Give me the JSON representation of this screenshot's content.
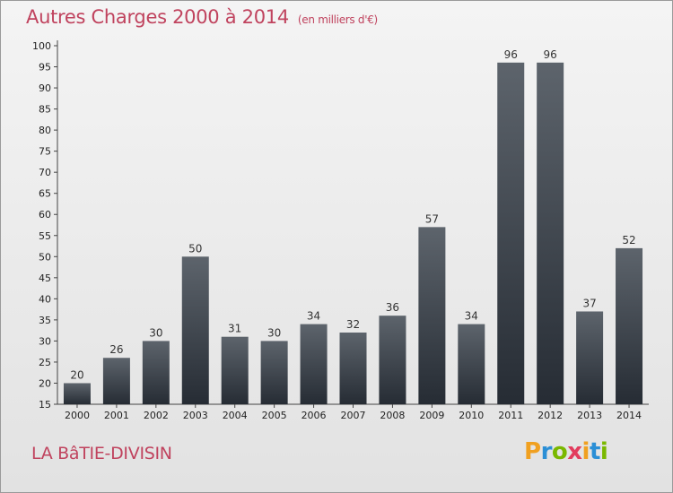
{
  "header": {
    "title": "Autres Charges 2000 à 2014",
    "unit": "(en milliers d'€)"
  },
  "footer": {
    "city": "LA BâTIE-DIVISIN",
    "logo": [
      "P",
      "r",
      "o",
      "x",
      "i",
      "t",
      "i"
    ]
  },
  "colors": {
    "title": "#c0435e",
    "bar_top": "#5d646c",
    "bar_bottom": "#262c34",
    "logo": [
      "#f0a020",
      "#2b8fd6",
      "#7ab800",
      "#e23c5d",
      "#f0a020",
      "#2b8fd6",
      "#7ab800"
    ]
  },
  "chart_data": {
    "type": "bar",
    "categories": [
      "2000",
      "2001",
      "2002",
      "2003",
      "2004",
      "2005",
      "2006",
      "2007",
      "2008",
      "2009",
      "2010",
      "2011",
      "2012",
      "2013",
      "2014"
    ],
    "values": [
      20,
      26,
      30,
      50,
      31,
      30,
      34,
      32,
      36,
      57,
      34,
      96,
      96,
      37,
      52
    ],
    "title": "Autres Charges 2000 à 2014",
    "xlabel": "",
    "ylabel": "",
    "ylim": [
      15,
      100
    ],
    "yticks": [
      15,
      20,
      25,
      30,
      35,
      40,
      45,
      50,
      55,
      60,
      65,
      70,
      75,
      80,
      85,
      90,
      95,
      100
    ],
    "grid": false,
    "legend": "none"
  }
}
